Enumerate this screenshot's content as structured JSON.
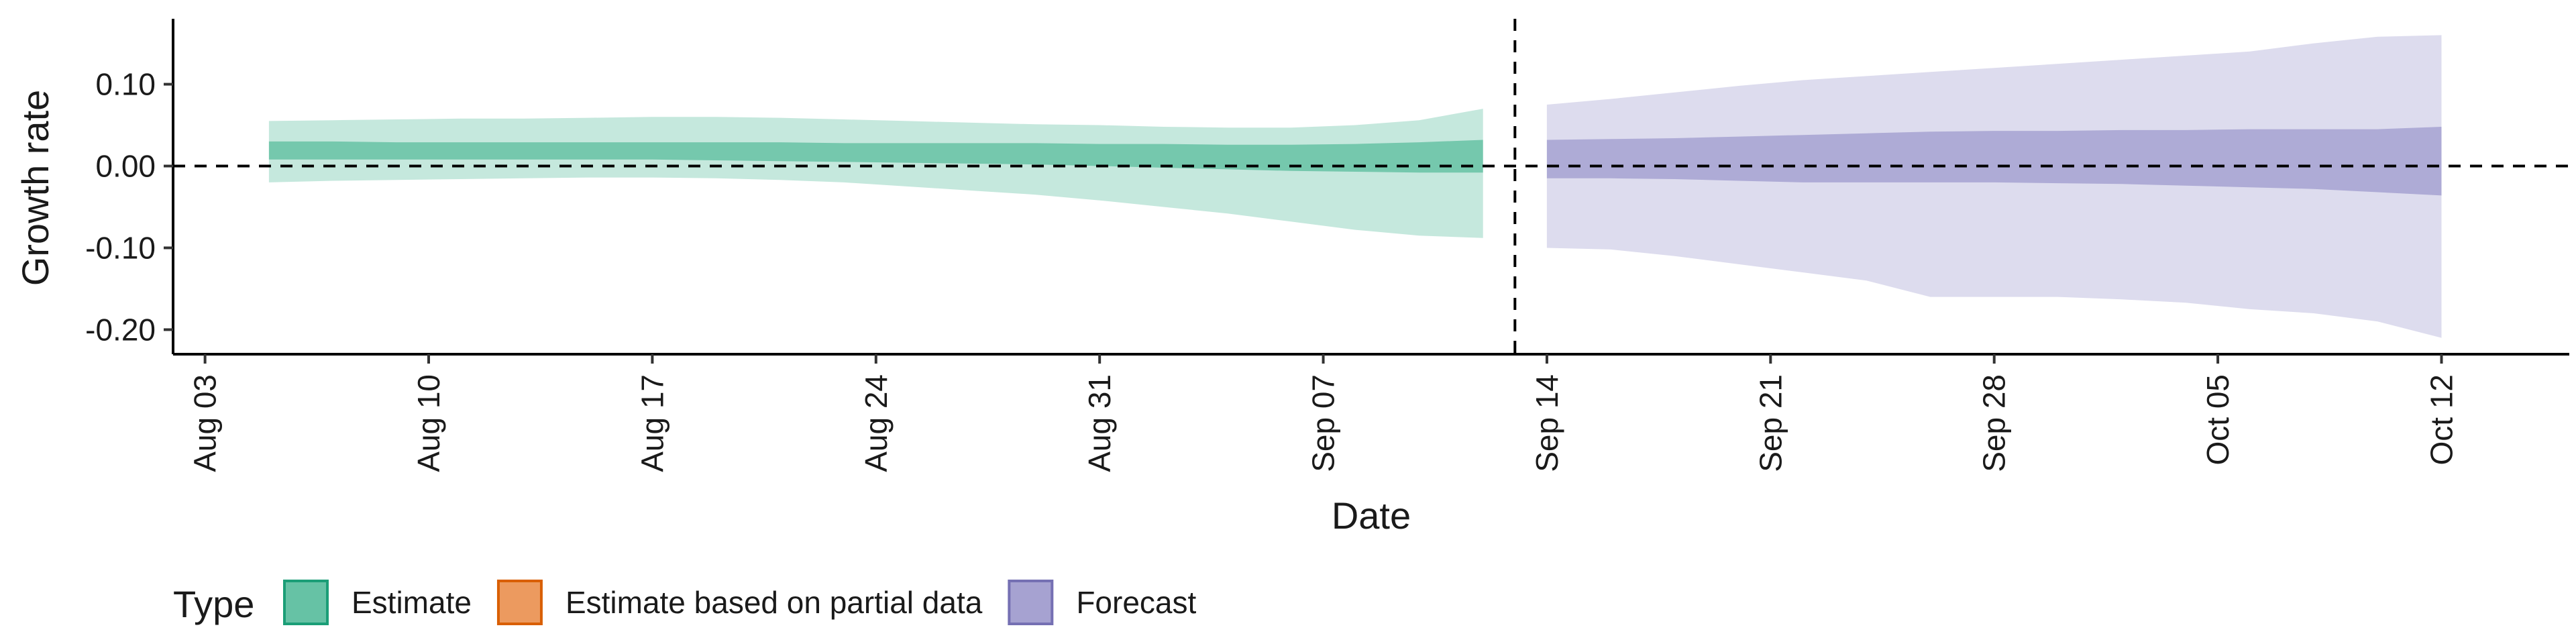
{
  "chart_data": {
    "type": "area",
    "xlabel": "Date",
    "ylabel": "Growth rate",
    "x_ticks": [
      "2020-08-03",
      "2020-08-10",
      "2020-08-17",
      "2020-08-24",
      "2020-08-31",
      "2020-09-07",
      "2020-09-14",
      "2020-09-21",
      "2020-09-28",
      "2020-10-05",
      "2020-10-12"
    ],
    "x_tick_labels": [
      "Aug 03",
      "Aug 10",
      "Aug 17",
      "Aug 24",
      "Aug 31",
      "Sep 07",
      "Sep 14",
      "Sep 21",
      "Sep 28",
      "Oct 05",
      "Oct 12"
    ],
    "xlim": [
      "2020-08-02",
      "2020-10-16"
    ],
    "y_ticks": [
      0.1,
      0.0,
      -0.1,
      -0.2
    ],
    "y_tick_labels": [
      "0.10",
      "0.00",
      "-0.10",
      "-0.20"
    ],
    "ylim": [
      -0.23,
      0.18
    ],
    "hline": 0.0,
    "vline": "2020-09-13",
    "grid": false,
    "legend": {
      "title": "Type",
      "position": "bottom-left",
      "entries": [
        {
          "label": "Estimate",
          "fill": "#66c2a5",
          "stroke": "#1b9e77"
        },
        {
          "label": "Estimate based on partial data",
          "fill": "#ec9a5f",
          "stroke": "#d95f02"
        },
        {
          "label": "Forecast",
          "fill": "#a6a2d1",
          "stroke": "#7570b3"
        }
      ]
    },
    "series": [
      {
        "name": "Estimate",
        "fill": "#66c2a5",
        "dates": [
          "2020-08-05",
          "2020-08-07",
          "2020-08-09",
          "2020-08-11",
          "2020-08-13",
          "2020-08-15",
          "2020-08-17",
          "2020-08-19",
          "2020-08-21",
          "2020-08-23",
          "2020-08-25",
          "2020-08-27",
          "2020-08-29",
          "2020-08-31",
          "2020-09-02",
          "2020-09-04",
          "2020-09-06",
          "2020-09-08",
          "2020-09-10",
          "2020-09-12"
        ],
        "lower90": [
          -0.02,
          -0.018,
          -0.017,
          -0.016,
          -0.015,
          -0.014,
          -0.014,
          -0.015,
          -0.017,
          -0.02,
          -0.025,
          -0.03,
          -0.035,
          -0.042,
          -0.05,
          -0.058,
          -0.068,
          -0.078,
          -0.085,
          -0.088
        ],
        "upper90": [
          0.055,
          0.056,
          0.057,
          0.058,
          0.058,
          0.059,
          0.06,
          0.06,
          0.059,
          0.057,
          0.055,
          0.053,
          0.051,
          0.05,
          0.048,
          0.047,
          0.047,
          0.05,
          0.056,
          0.07
        ],
        "lower50": [
          0.008,
          0.008,
          0.008,
          0.008,
          0.008,
          0.008,
          0.008,
          0.007,
          0.006,
          0.005,
          0.004,
          0.003,
          0.002,
          0.0,
          -0.002,
          -0.004,
          -0.006,
          -0.007,
          -0.008,
          -0.008
        ],
        "upper50": [
          0.03,
          0.03,
          0.029,
          0.029,
          0.029,
          0.029,
          0.029,
          0.029,
          0.029,
          0.028,
          0.028,
          0.028,
          0.028,
          0.027,
          0.027,
          0.026,
          0.026,
          0.027,
          0.029,
          0.032
        ]
      },
      {
        "name": "Forecast",
        "fill": "#a6a2d1",
        "dates": [
          "2020-09-14",
          "2020-09-16",
          "2020-09-18",
          "2020-09-20",
          "2020-09-22",
          "2020-09-24",
          "2020-09-26",
          "2020-09-28",
          "2020-09-30",
          "2020-10-02",
          "2020-10-04",
          "2020-10-06",
          "2020-10-08",
          "2020-10-10",
          "2020-10-12"
        ],
        "lower90": [
          -0.1,
          -0.102,
          -0.11,
          -0.12,
          -0.13,
          -0.14,
          -0.16,
          -0.16,
          -0.16,
          -0.163,
          -0.167,
          -0.175,
          -0.18,
          -0.19,
          -0.21
        ],
        "upper90": [
          0.075,
          0.082,
          0.09,
          0.098,
          0.105,
          0.11,
          0.115,
          0.12,
          0.125,
          0.13,
          0.135,
          0.14,
          0.15,
          0.158,
          0.16
        ],
        "lower50": [
          -0.015,
          -0.015,
          -0.016,
          -0.018,
          -0.02,
          -0.02,
          -0.02,
          -0.02,
          -0.021,
          -0.022,
          -0.024,
          -0.026,
          -0.028,
          -0.032,
          -0.036
        ],
        "upper50": [
          0.032,
          0.033,
          0.034,
          0.036,
          0.038,
          0.04,
          0.042,
          0.043,
          0.043,
          0.044,
          0.044,
          0.045,
          0.045,
          0.045,
          0.048
        ]
      }
    ]
  }
}
